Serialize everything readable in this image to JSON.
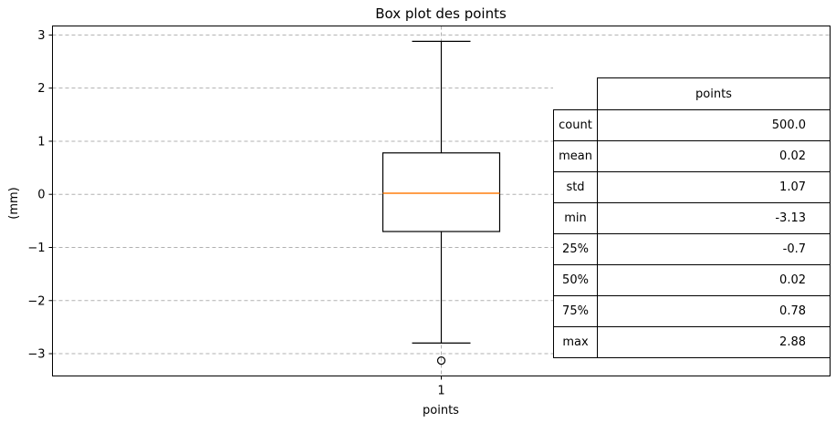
{
  "chart_data": {
    "type": "box",
    "title": "Box plot des points",
    "xlabel": "points",
    "ylabel": "(mm)",
    "categories": [
      "1"
    ],
    "ylim": [
      -3.42,
      3.17
    ],
    "yticks": [
      -3,
      -2,
      -1,
      0,
      1,
      2,
      3
    ],
    "ytick_labels": [
      "−3",
      "−2",
      "−1",
      "0",
      "1",
      "2",
      "3"
    ],
    "grid": true,
    "box": {
      "q1": -0.7,
      "median": 0.02,
      "q3": 0.78,
      "whisker_low": -2.8,
      "whisker_high": 2.88,
      "outliers": [
        -3.13
      ]
    },
    "colors": {
      "median": "#ff7f0e",
      "box": "#000000",
      "grid": "#b0b0b0"
    }
  },
  "table": {
    "column_header": "points",
    "rows": [
      {
        "label": "count",
        "value": "500.0"
      },
      {
        "label": "mean",
        "value": "0.02"
      },
      {
        "label": "std",
        "value": "1.07"
      },
      {
        "label": "min",
        "value": "-3.13"
      },
      {
        "label": "25%",
        "value": "-0.7"
      },
      {
        "label": "50%",
        "value": "0.02"
      },
      {
        "label": "75%",
        "value": "0.78"
      },
      {
        "label": "max",
        "value": "2.88"
      }
    ]
  }
}
